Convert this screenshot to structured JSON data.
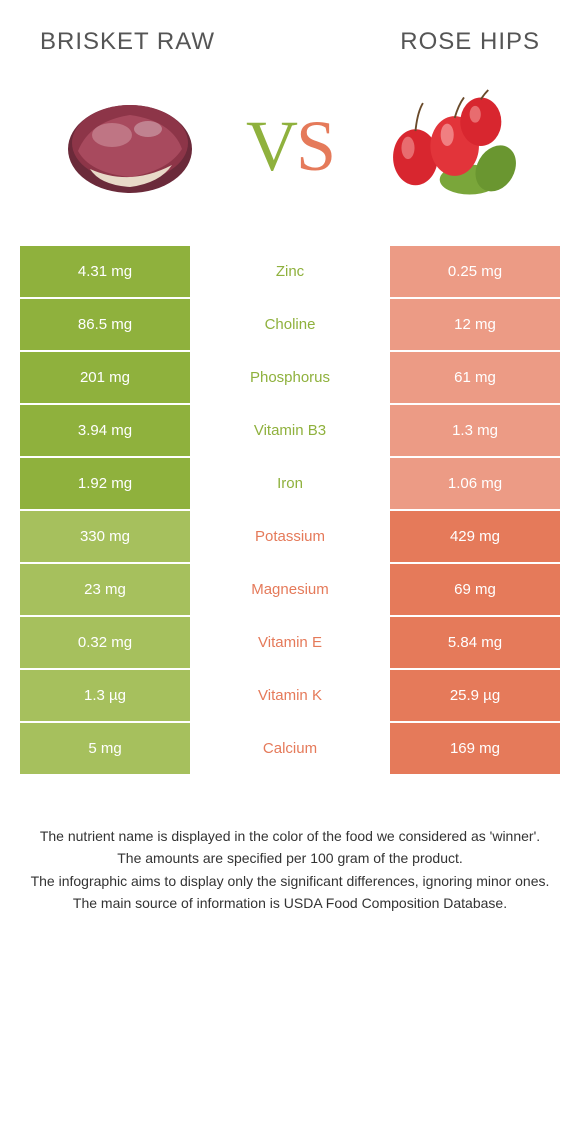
{
  "left_title": "BRISKET RAW",
  "right_title": "ROSE HIPS",
  "vs_v": "V",
  "vs_s": "S",
  "colors": {
    "left": "#8fb13d",
    "left_dim": "#a6c05d",
    "right": "#e57a5a",
    "right_dim": "#ec9b85"
  },
  "rows": [
    {
      "name": "Zinc",
      "left": "4.31 mg",
      "right": "0.25 mg",
      "winner": "left"
    },
    {
      "name": "Choline",
      "left": "86.5 mg",
      "right": "12 mg",
      "winner": "left"
    },
    {
      "name": "Phosphorus",
      "left": "201 mg",
      "right": "61 mg",
      "winner": "left"
    },
    {
      "name": "Vitamin B3",
      "left": "3.94 mg",
      "right": "1.3 mg",
      "winner": "left"
    },
    {
      "name": "Iron",
      "left": "1.92 mg",
      "right": "1.06 mg",
      "winner": "left"
    },
    {
      "name": "Potassium",
      "left": "330 mg",
      "right": "429 mg",
      "winner": "right"
    },
    {
      "name": "Magnesium",
      "left": "23 mg",
      "right": "69 mg",
      "winner": "right"
    },
    {
      "name": "Vitamin E",
      "left": "0.32 mg",
      "right": "5.84 mg",
      "winner": "right"
    },
    {
      "name": "Vitamin K",
      "left": "1.3 µg",
      "right": "25.9 µg",
      "winner": "right"
    },
    {
      "name": "Calcium",
      "left": "5 mg",
      "right": "169 mg",
      "winner": "right"
    }
  ],
  "footer": [
    "The nutrient name is displayed in the color of the food we considered as 'winner'.",
    "The amounts are specified per 100 gram of the product.",
    "The infographic aims to display only the significant differences, ignoring minor ones.",
    "The main source of information is USDA Food Composition Database."
  ]
}
